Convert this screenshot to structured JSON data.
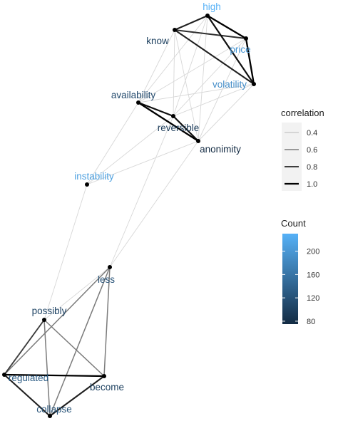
{
  "nodes": [
    {
      "id": "high",
      "label": "high",
      "count": 230
    },
    {
      "id": "know",
      "label": "know",
      "count": 100
    },
    {
      "id": "price",
      "label": "price",
      "count": 200
    },
    {
      "id": "volatility",
      "label": "volatility",
      "count": 190
    },
    {
      "id": "availability",
      "label": "availability",
      "count": 110
    },
    {
      "id": "reversible",
      "label": "reversible",
      "count": 95
    },
    {
      "id": "anonimity",
      "label": "anonimity",
      "count": 75
    },
    {
      "id": "instability",
      "label": "instability",
      "count": 210
    },
    {
      "id": "less",
      "label": "less",
      "count": 120
    },
    {
      "id": "possibly",
      "label": "possibly",
      "count": 105
    },
    {
      "id": "regulated",
      "label": "regulated",
      "count": 130
    },
    {
      "id": "become",
      "label": "become",
      "count": 100
    },
    {
      "id": "collapse",
      "label": "collapse",
      "count": 120
    }
  ],
  "edges": [
    {
      "from": "high",
      "to": "price",
      "correlation": 1.0
    },
    {
      "from": "high",
      "to": "volatility",
      "correlation": 0.95
    },
    {
      "from": "high",
      "to": "know",
      "correlation": 0.9
    },
    {
      "from": "price",
      "to": "volatility",
      "correlation": 1.0
    },
    {
      "from": "know",
      "to": "volatility",
      "correlation": 0.9
    },
    {
      "from": "know",
      "to": "price",
      "correlation": 0.85
    },
    {
      "from": "availability",
      "to": "reversible",
      "correlation": 0.95
    },
    {
      "from": "availability",
      "to": "anonimity",
      "correlation": 1.0
    },
    {
      "from": "reversible",
      "to": "anonimity",
      "correlation": 0.95
    },
    {
      "from": "know",
      "to": "availability",
      "correlation": 0.3
    },
    {
      "from": "know",
      "to": "reversible",
      "correlation": 0.3
    },
    {
      "from": "know",
      "to": "anonimity",
      "correlation": 0.3
    },
    {
      "from": "high",
      "to": "availability",
      "correlation": 0.3
    },
    {
      "from": "high",
      "to": "reversible",
      "correlation": 0.3
    },
    {
      "from": "high",
      "to": "anonimity",
      "correlation": 0.3
    },
    {
      "from": "price",
      "to": "availability",
      "correlation": 0.3
    },
    {
      "from": "price",
      "to": "reversible",
      "correlation": 0.3
    },
    {
      "from": "price",
      "to": "anonimity",
      "correlation": 0.3
    },
    {
      "from": "volatility",
      "to": "availability",
      "correlation": 0.3
    },
    {
      "from": "volatility",
      "to": "reversible",
      "correlation": 0.3
    },
    {
      "from": "volatility",
      "to": "anonimity",
      "correlation": 0.3
    },
    {
      "from": "instability",
      "to": "availability",
      "correlation": 0.3
    },
    {
      "from": "instability",
      "to": "reversible",
      "correlation": 0.3
    },
    {
      "from": "instability",
      "to": "anonimity",
      "correlation": 0.3
    },
    {
      "from": "instability",
      "to": "possibly",
      "correlation": 0.3
    },
    {
      "from": "less",
      "to": "reversible",
      "correlation": 0.3
    },
    {
      "from": "less",
      "to": "anonimity",
      "correlation": 0.3
    },
    {
      "from": "possibly",
      "to": "less",
      "correlation": 0.3
    },
    {
      "from": "less",
      "to": "regulated",
      "correlation": 0.6
    },
    {
      "from": "less",
      "to": "become",
      "correlation": 0.6
    },
    {
      "from": "less",
      "to": "collapse",
      "correlation": 0.6
    },
    {
      "from": "possibly",
      "to": "regulated",
      "correlation": 0.8
    },
    {
      "from": "possibly",
      "to": "become",
      "correlation": 0.6
    },
    {
      "from": "possibly",
      "to": "collapse",
      "correlation": 0.6
    },
    {
      "from": "regulated",
      "to": "become",
      "correlation": 1.0
    },
    {
      "from": "regulated",
      "to": "collapse",
      "correlation": 0.9
    },
    {
      "from": "become",
      "to": "collapse",
      "correlation": 0.9
    }
  ],
  "legend_correlation": {
    "title": "correlation",
    "entries": [
      {
        "label": "0.4",
        "value": 0.4
      },
      {
        "label": "0.6",
        "value": 0.6
      },
      {
        "label": "0.8",
        "value": 0.8
      },
      {
        "label": "1.0",
        "value": 1.0
      }
    ]
  },
  "legend_count": {
    "title": "Count",
    "ticks": [
      "200",
      "160",
      "120",
      "80"
    ],
    "tick_values": [
      200,
      160,
      120,
      80
    ],
    "range": [
      75,
      230
    ],
    "color_low": "#132b43",
    "color_high": "#56b1f7"
  },
  "colors": {
    "node_point": "#000000",
    "edge_dark": "#000000",
    "background": "#ffffff"
  }
}
